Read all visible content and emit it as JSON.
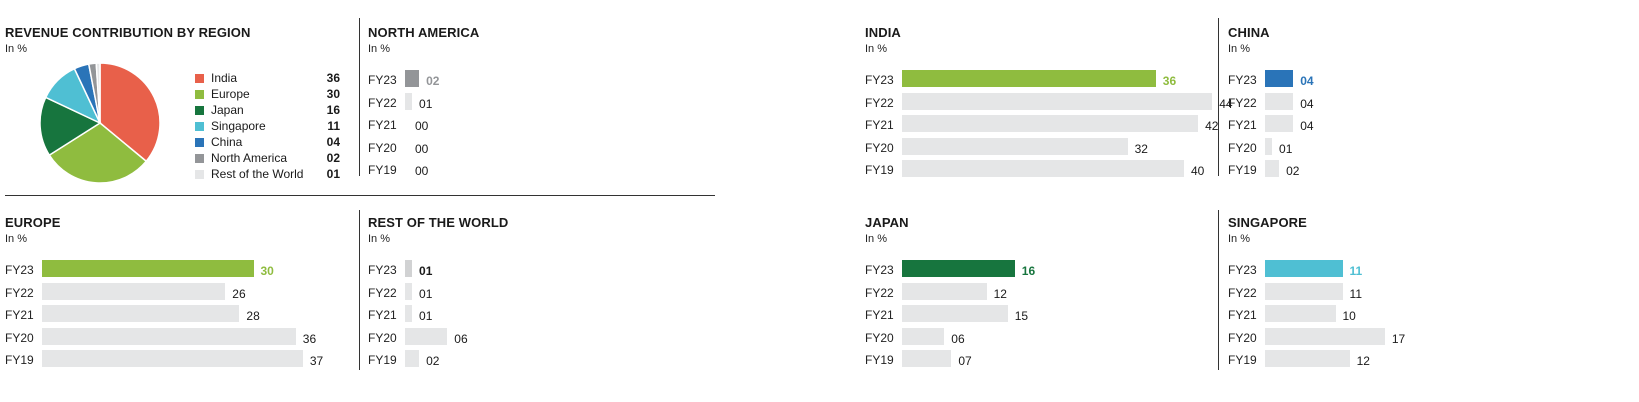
{
  "colors": {
    "india": "#e8604a",
    "europe": "#8fbc3f",
    "japan": "#17753e",
    "singapore": "#4fbfd3",
    "china": "#2a74b8",
    "north_america": "#939598",
    "rest_of_world": "#d1d2d3",
    "bar_bg": "#e5e6e7"
  },
  "chart_data": [
    {
      "id": "pie",
      "type": "pie",
      "title": "REVENUE CONTRIBUTION BY REGION",
      "unit": "In %",
      "labels": [
        "India",
        "Europe",
        "Japan",
        "Singapore",
        "China",
        "North America",
        "Rest of the World"
      ],
      "values": [
        36,
        30,
        16,
        11,
        4,
        2,
        1
      ],
      "value_labels": [
        "36",
        "30",
        "16",
        "11",
        "04",
        "02",
        "01"
      ],
      "colors": [
        "#e8604a",
        "#8fbc3f",
        "#17753e",
        "#4fbfd3",
        "#2a74b8",
        "#939598",
        "#e5e6e7"
      ],
      "legend": "right"
    },
    {
      "id": "north_america",
      "type": "bar",
      "title": "NORTH AMERICA",
      "unit": "In %",
      "categories": [
        "FY23",
        "FY22",
        "FY21",
        "FY20",
        "FY19"
      ],
      "values": [
        2,
        1,
        0,
        0,
        0
      ],
      "value_labels": [
        "02",
        "01",
        "00",
        "00",
        "00"
      ],
      "highlight_color": "#939598"
    },
    {
      "id": "india",
      "type": "bar",
      "title": "INDIA",
      "unit": "In %",
      "categories": [
        "FY23",
        "FY22",
        "FY21",
        "FY20",
        "FY19"
      ],
      "values": [
        36,
        44,
        42,
        32,
        40
      ],
      "value_labels": [
        "36",
        "44",
        "42",
        "32",
        "40"
      ],
      "highlight_color": "#8fbc3f"
    },
    {
      "id": "china",
      "type": "bar",
      "title": "CHINA",
      "unit": "In %",
      "categories": [
        "FY23",
        "FY22",
        "FY21",
        "FY20",
        "FY19"
      ],
      "values": [
        4,
        4,
        4,
        1,
        2
      ],
      "value_labels": [
        "04",
        "04",
        "04",
        "01",
        "02"
      ],
      "highlight_color": "#2a74b8"
    },
    {
      "id": "europe",
      "type": "bar",
      "title": "EUROPE",
      "unit": "In %",
      "categories": [
        "FY23",
        "FY22",
        "FY21",
        "FY20",
        "FY19"
      ],
      "values": [
        30,
        26,
        28,
        36,
        37
      ],
      "value_labels": [
        "30",
        "26",
        "28",
        "36",
        "37"
      ],
      "highlight_color": "#8fbc3f"
    },
    {
      "id": "rest_of_world",
      "type": "bar",
      "title": "REST OF THE WORLD",
      "unit": "In %",
      "categories": [
        "FY23",
        "FY22",
        "FY21",
        "FY20",
        "FY19"
      ],
      "values": [
        1,
        1,
        1,
        6,
        2
      ],
      "value_labels": [
        "01",
        "01",
        "01",
        "06",
        "02"
      ],
      "highlight_color": "#d1d2d3",
      "highlight_label_color": "#1a1a1a"
    },
    {
      "id": "japan",
      "type": "bar",
      "title": "JAPAN",
      "unit": "In %",
      "categories": [
        "FY23",
        "FY22",
        "FY21",
        "FY20",
        "FY19"
      ],
      "values": [
        16,
        12,
        15,
        6,
        7
      ],
      "value_labels": [
        "16",
        "12",
        "15",
        "06",
        "07"
      ],
      "highlight_color": "#17753e"
    },
    {
      "id": "singapore",
      "type": "bar",
      "title": "SINGAPORE",
      "unit": "In %",
      "categories": [
        "FY23",
        "FY22",
        "FY21",
        "FY20",
        "FY19"
      ],
      "values": [
        11,
        11,
        10,
        17,
        12
      ],
      "value_labels": [
        "11",
        "11",
        "10",
        "17",
        "12"
      ],
      "highlight_color": "#4fbfd3"
    }
  ]
}
